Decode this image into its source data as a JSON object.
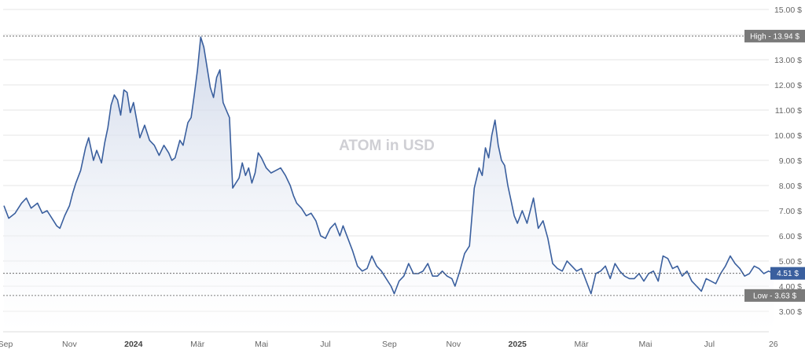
{
  "chart_data": {
    "type": "area",
    "title": "ATOM in USD",
    "currency_suffix": " $",
    "ylim": [
      2.5,
      15.5
    ],
    "y_ticks": [
      "3.00 $",
      "4.00 $",
      "5.00 $",
      "6.00 $",
      "7.00 $",
      "8.00 $",
      "9.00 $",
      "10.00 $",
      "11.00 $",
      "12.00 $",
      "13.00 $",
      "14.00 $",
      "15.00 $"
    ],
    "y_tick_values": [
      3,
      4,
      5,
      6,
      7,
      8,
      9,
      10,
      11,
      12,
      13,
      14,
      15
    ],
    "x_ticks": [
      {
        "label": "Sep",
        "month": 0,
        "bold": false
      },
      {
        "label": "Nov",
        "month": 2,
        "bold": false
      },
      {
        "label": "2024",
        "month": 4,
        "bold": true
      },
      {
        "label": "Mär",
        "month": 6,
        "bold": false
      },
      {
        "label": "Mai",
        "month": 8,
        "bold": false
      },
      {
        "label": "Jul",
        "month": 10,
        "bold": false
      },
      {
        "label": "Sep",
        "month": 12,
        "bold": false
      },
      {
        "label": "Nov",
        "month": 14,
        "bold": false
      },
      {
        "label": "2025",
        "month": 16,
        "bold": true
      },
      {
        "label": "Mär",
        "month": 18,
        "bold": false
      },
      {
        "label": "Mai",
        "month": 20,
        "bold": false
      },
      {
        "label": "Jul",
        "month": 22,
        "bold": false
      },
      {
        "label": "26",
        "month": 24,
        "bold": false
      }
    ],
    "series": [
      {
        "color": "#3a5f9e",
        "x_months": [
          -0.05,
          0.1,
          0.3,
          0.5,
          0.65,
          0.8,
          1.0,
          1.15,
          1.3,
          1.5,
          1.6,
          1.7,
          1.85,
          2.0,
          2.1,
          2.2,
          2.35,
          2.5,
          2.6,
          2.75,
          2.85,
          3.0,
          3.1,
          3.2,
          3.3,
          3.4,
          3.5,
          3.6,
          3.7,
          3.8,
          3.9,
          4.0,
          4.1,
          4.2,
          4.35,
          4.5,
          4.65,
          4.8,
          4.95,
          5.1,
          5.2,
          5.3,
          5.45,
          5.55,
          5.7,
          5.8,
          5.9,
          6.0,
          6.1,
          6.2,
          6.3,
          6.4,
          6.5,
          6.6,
          6.7,
          6.8,
          6.9,
          7.0,
          7.1,
          7.2,
          7.3,
          7.4,
          7.5,
          7.6,
          7.7,
          7.8,
          7.9,
          8.0,
          8.15,
          8.3,
          8.45,
          8.6,
          8.75,
          8.9,
          9.0,
          9.1,
          9.25,
          9.4,
          9.55,
          9.7,
          9.85,
          10.0,
          10.15,
          10.3,
          10.45,
          10.55,
          10.7,
          10.85,
          11.0,
          11.15,
          11.3,
          11.45,
          11.6,
          11.75,
          11.9,
          12.05,
          12.15,
          12.3,
          12.45,
          12.6,
          12.75,
          12.9,
          13.05,
          13.2,
          13.35,
          13.5,
          13.65,
          13.8,
          13.95,
          14.05,
          14.2,
          14.35,
          14.5,
          14.65,
          14.8,
          14.9,
          15.0,
          15.1,
          15.2,
          15.3,
          15.4,
          15.5,
          15.6,
          15.7,
          15.8,
          15.9,
          16.0,
          16.15,
          16.3,
          16.5,
          16.65,
          16.8,
          16.95,
          17.1,
          17.25,
          17.4,
          17.55,
          17.7,
          17.85,
          18.0,
          18.15,
          18.3,
          18.45,
          18.6,
          18.75,
          18.9,
          19.05,
          19.2,
          19.35,
          19.5,
          19.65,
          19.8,
          19.95,
          20.1,
          20.25,
          20.4,
          20.55,
          20.7,
          20.85,
          21.0,
          21.15,
          21.3,
          21.45,
          21.6,
          21.75,
          21.9,
          22.05,
          22.2,
          22.35,
          22.5,
          22.65,
          22.8,
          22.95,
          23.1,
          23.25,
          23.4,
          23.55,
          23.7,
          23.85,
          24.0
        ],
        "values": [
          7.2,
          6.7,
          6.9,
          7.3,
          7.5,
          7.1,
          7.3,
          6.9,
          7.0,
          6.6,
          6.4,
          6.3,
          6.8,
          7.2,
          7.7,
          8.1,
          8.6,
          9.5,
          9.9,
          9.0,
          9.4,
          8.9,
          9.7,
          10.3,
          11.2,
          11.6,
          11.4,
          10.8,
          11.8,
          11.7,
          10.9,
          11.3,
          10.6,
          9.9,
          10.4,
          9.8,
          9.6,
          9.2,
          9.6,
          9.3,
          9.0,
          9.1,
          9.8,
          9.6,
          10.5,
          10.7,
          11.6,
          12.6,
          13.9,
          13.5,
          12.7,
          11.9,
          11.5,
          12.3,
          12.6,
          11.3,
          11.0,
          10.7,
          7.9,
          8.1,
          8.3,
          8.9,
          8.4,
          8.7,
          8.1,
          8.5,
          9.3,
          9.1,
          8.7,
          8.5,
          8.6,
          8.7,
          8.4,
          8.0,
          7.6,
          7.3,
          7.1,
          6.8,
          6.9,
          6.6,
          6.0,
          5.9,
          6.3,
          6.5,
          6.0,
          6.4,
          5.9,
          5.4,
          4.8,
          4.6,
          4.7,
          5.2,
          4.8,
          4.6,
          4.3,
          4.0,
          3.7,
          4.2,
          4.4,
          4.9,
          4.5,
          4.5,
          4.6,
          4.9,
          4.4,
          4.4,
          4.6,
          4.4,
          4.3,
          4.0,
          4.6,
          5.3,
          5.6,
          7.9,
          8.7,
          8.4,
          9.5,
          9.1,
          10.0,
          10.6,
          9.6,
          9.0,
          8.8,
          8.0,
          7.4,
          6.8,
          6.5,
          7.0,
          6.5,
          7.5,
          6.3,
          6.6,
          5.9,
          4.9,
          4.7,
          4.6,
          5.0,
          4.8,
          4.6,
          4.7,
          4.2,
          3.7,
          4.5,
          4.6,
          4.8,
          4.3,
          4.9,
          4.6,
          4.4,
          4.3,
          4.3,
          4.5,
          4.2,
          4.5,
          4.6,
          4.2,
          5.2,
          5.1,
          4.7,
          4.8,
          4.4,
          4.6,
          4.2,
          4.0,
          3.8,
          4.3,
          4.2,
          4.1,
          4.5,
          4.8,
          5.2,
          4.9,
          4.7,
          4.4,
          4.5,
          4.8,
          4.7,
          4.5,
          4.6,
          4.51
        ]
      }
    ],
    "high": {
      "label": "High",
      "value": 13.94,
      "text": "13.94 $"
    },
    "low": {
      "label": "Low",
      "value": 3.63,
      "text": "3.63 $"
    },
    "current": {
      "value": 4.51,
      "text": "4.51 $"
    },
    "colors": {
      "line": "#3a5f9e",
      "fill_top": "#c8d2e6",
      "fill_bottom": "#ffffff",
      "flag_gray": "#7a7a7a",
      "flag_current": "#3a5f9e"
    }
  }
}
